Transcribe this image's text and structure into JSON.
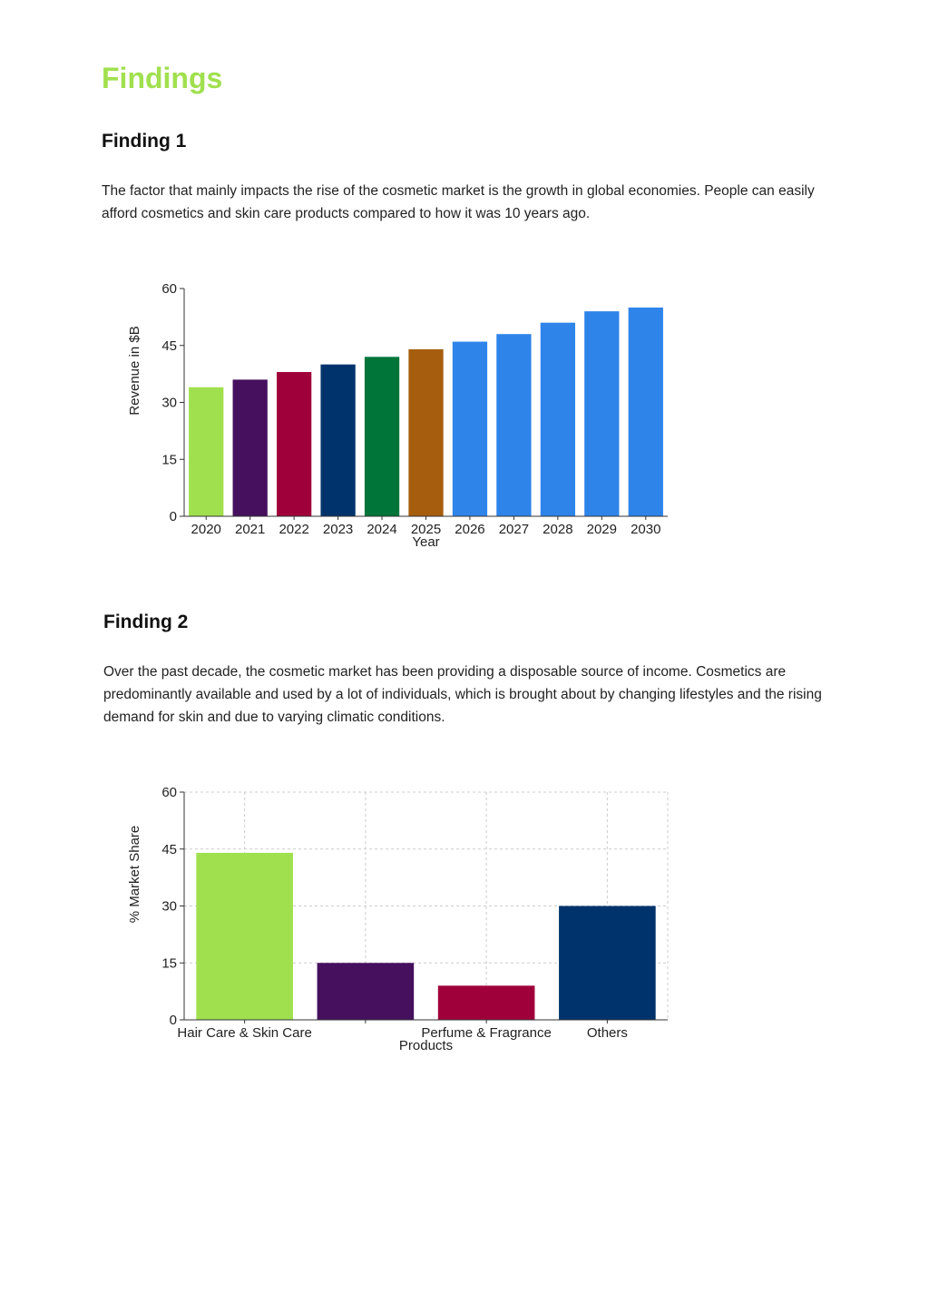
{
  "page": {
    "title": "Findings"
  },
  "findings": [
    {
      "heading": "Finding 1",
      "text": "The factor that mainly impacts the rise of the cosmetic market is the growth in global economies. People can easily afford cosmetics and skin care products compared to how it was 10 years ago."
    },
    {
      "heading": "Finding 2",
      "text": "Over the past decade, the cosmetic market has been providing a disposable source of income. Cosmetics are predominantly available and used by a lot of individuals, which is brought about by changing lifestyles and the rising demand for skin and due to varying climatic conditions."
    }
  ],
  "chart_data": [
    {
      "type": "bar",
      "title": "",
      "xlabel": "Year",
      "ylabel": "Revenue in $B",
      "categories": [
        "2020",
        "2021",
        "2022",
        "2023",
        "2024",
        "2025",
        "2026",
        "2027",
        "2028",
        "2029",
        "2030"
      ],
      "values": [
        34,
        36,
        38,
        40,
        42,
        44,
        46,
        48,
        51,
        54,
        55
      ],
      "colors": [
        "#a0e04e",
        "#46105e",
        "#a0003a",
        "#00336c",
        "#00753a",
        "#a65e0e",
        "#2f84ea",
        "#2f84ea",
        "#2f84ea",
        "#2f84ea",
        "#2f84ea"
      ],
      "ylim": [
        0,
        60
      ],
      "yticks": [
        0,
        15,
        30,
        45,
        60
      ],
      "grid": false
    },
    {
      "type": "bar",
      "title": "",
      "xlabel": "Products",
      "ylabel": "% Market Share",
      "categories": [
        "Hair Care & Skin Care",
        "",
        "Perfume & Fragrance",
        "Others"
      ],
      "values": [
        44,
        15,
        9,
        30
      ],
      "colors": [
        "#a0e04e",
        "#46105e",
        "#a0003a",
        "#00336c"
      ],
      "ylim": [
        0,
        60
      ],
      "yticks": [
        0,
        15,
        30,
        45,
        60
      ],
      "grid": true
    }
  ]
}
